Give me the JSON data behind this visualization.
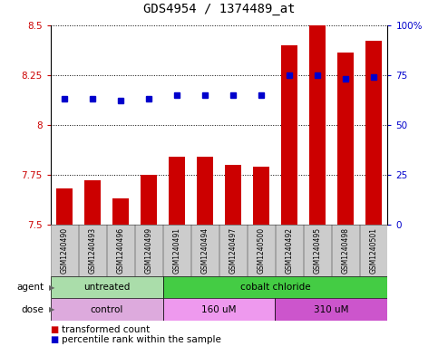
{
  "title": "GDS4954 / 1374489_at",
  "samples": [
    "GSM1240490",
    "GSM1240493",
    "GSM1240496",
    "GSM1240499",
    "GSM1240491",
    "GSM1240494",
    "GSM1240497",
    "GSM1240500",
    "GSM1240492",
    "GSM1240495",
    "GSM1240498",
    "GSM1240501"
  ],
  "bar_values": [
    7.68,
    7.72,
    7.63,
    7.75,
    7.84,
    7.84,
    7.8,
    7.79,
    8.4,
    8.5,
    8.36,
    8.42
  ],
  "dot_values": [
    63,
    63,
    62,
    63,
    65,
    65,
    65,
    65,
    75,
    75,
    73,
    74
  ],
  "ylim": [
    7.5,
    8.5
  ],
  "yticks": [
    7.5,
    7.75,
    8.0,
    8.25,
    8.5
  ],
  "ytick_labels": [
    "7.5",
    "7.75",
    "8",
    "8.25",
    "8.5"
  ],
  "right_yticks": [
    0,
    25,
    50,
    75,
    100
  ],
  "right_ytick_labels": [
    "0",
    "25",
    "50",
    "75",
    "100%"
  ],
  "bar_color": "#cc0000",
  "dot_color": "#0000cc",
  "agent_groups": [
    {
      "label": "untreated",
      "start": 0,
      "end": 4,
      "color": "#aaddaa"
    },
    {
      "label": "cobalt chloride",
      "start": 4,
      "end": 12,
      "color": "#44cc44"
    }
  ],
  "dose_groups": [
    {
      "label": "control",
      "start": 0,
      "end": 4,
      "color": "#ddaadd"
    },
    {
      "label": "160 uM",
      "start": 4,
      "end": 8,
      "color": "#ee99ee"
    },
    {
      "label": "310 uM",
      "start": 8,
      "end": 12,
      "color": "#cc55cc"
    }
  ],
  "legend_bar_label": "transformed count",
  "legend_dot_label": "percentile rank within the sample",
  "agent_label": "agent",
  "dose_label": "dose",
  "title_fontsize": 10,
  "axis_fontsize": 7.5,
  "label_fontsize": 7.5,
  "sample_fontsize": 5.5,
  "annotation_fontsize": 7.5
}
